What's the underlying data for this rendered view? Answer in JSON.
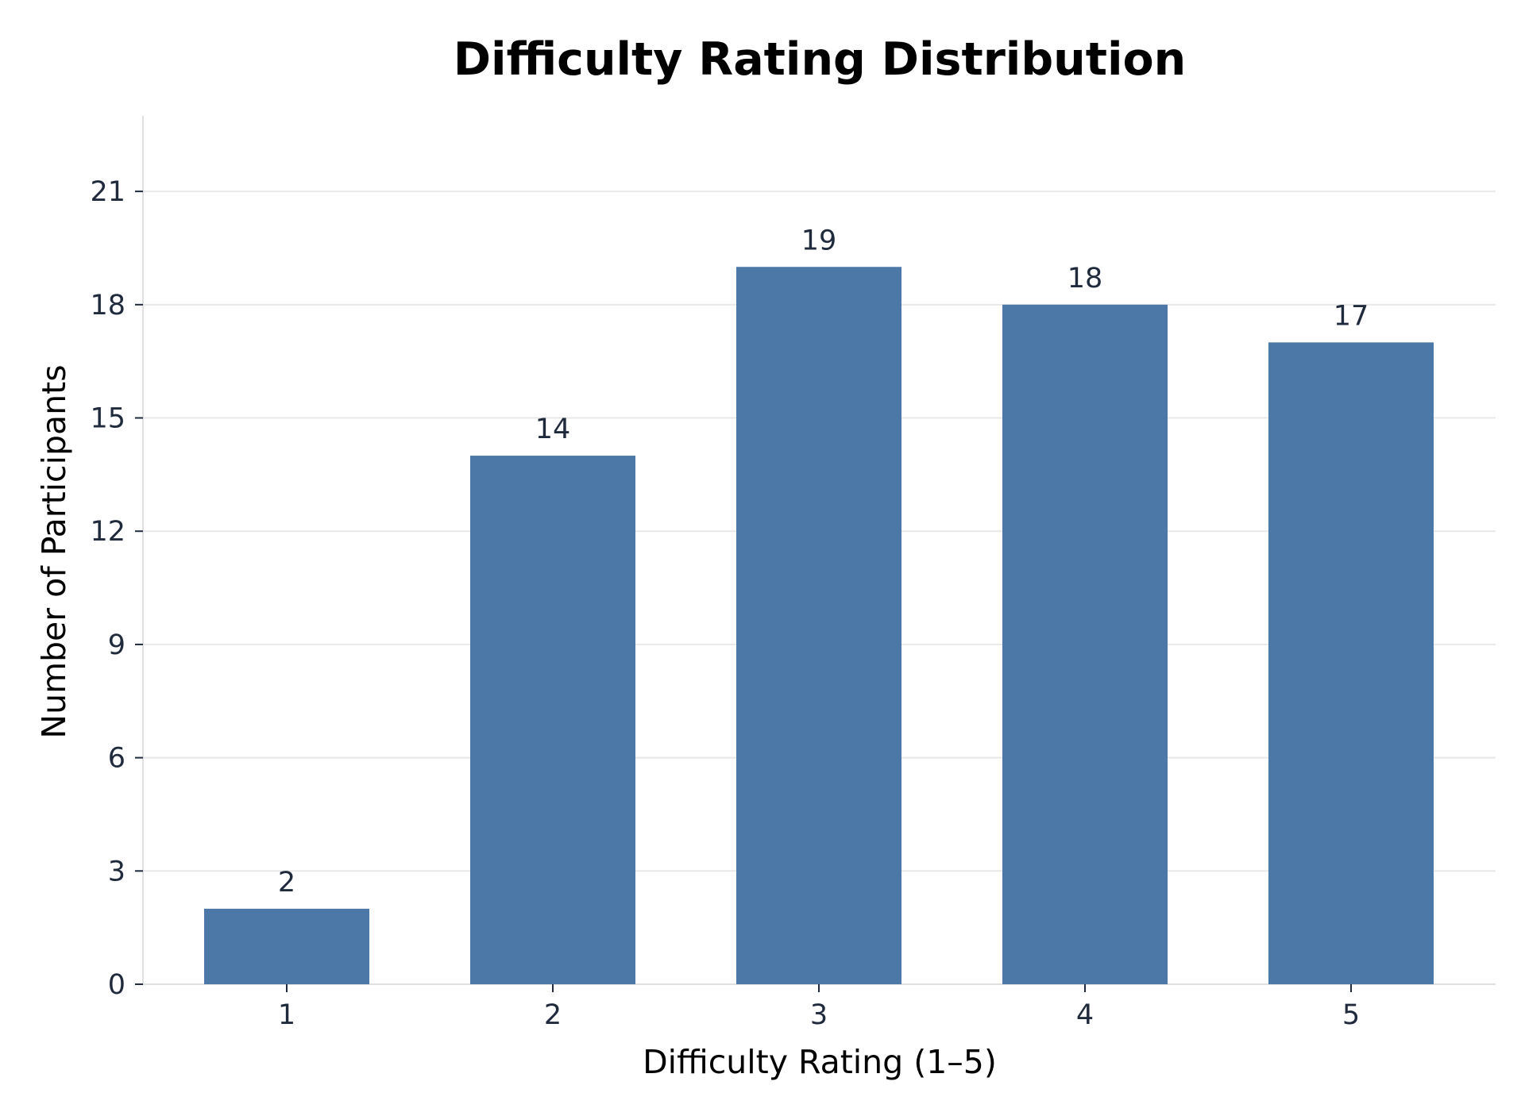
{
  "chart_data": {
    "type": "bar",
    "title": "Difficulty Rating Distribution",
    "xlabel": "Difficulty Rating (1–5)",
    "ylabel": "Number of Participants",
    "categories": [
      "1",
      "2",
      "3",
      "4",
      "5"
    ],
    "values": [
      2,
      14,
      19,
      18,
      17
    ],
    "data_labels": [
      "2",
      "14",
      "19",
      "18",
      "17"
    ],
    "ylim": [
      0,
      23
    ],
    "yticks": [
      0,
      3,
      6,
      9,
      12,
      15,
      18,
      21
    ],
    "ytick_labels": [
      "0",
      "3",
      "6",
      "9",
      "12",
      "15",
      "18",
      "21"
    ],
    "grid": true,
    "bar_color": "#4c78a8",
    "grid_color": "#e8e8e8",
    "axis_color": "#e0e0e0",
    "text_color": "#1f2a3c"
  }
}
